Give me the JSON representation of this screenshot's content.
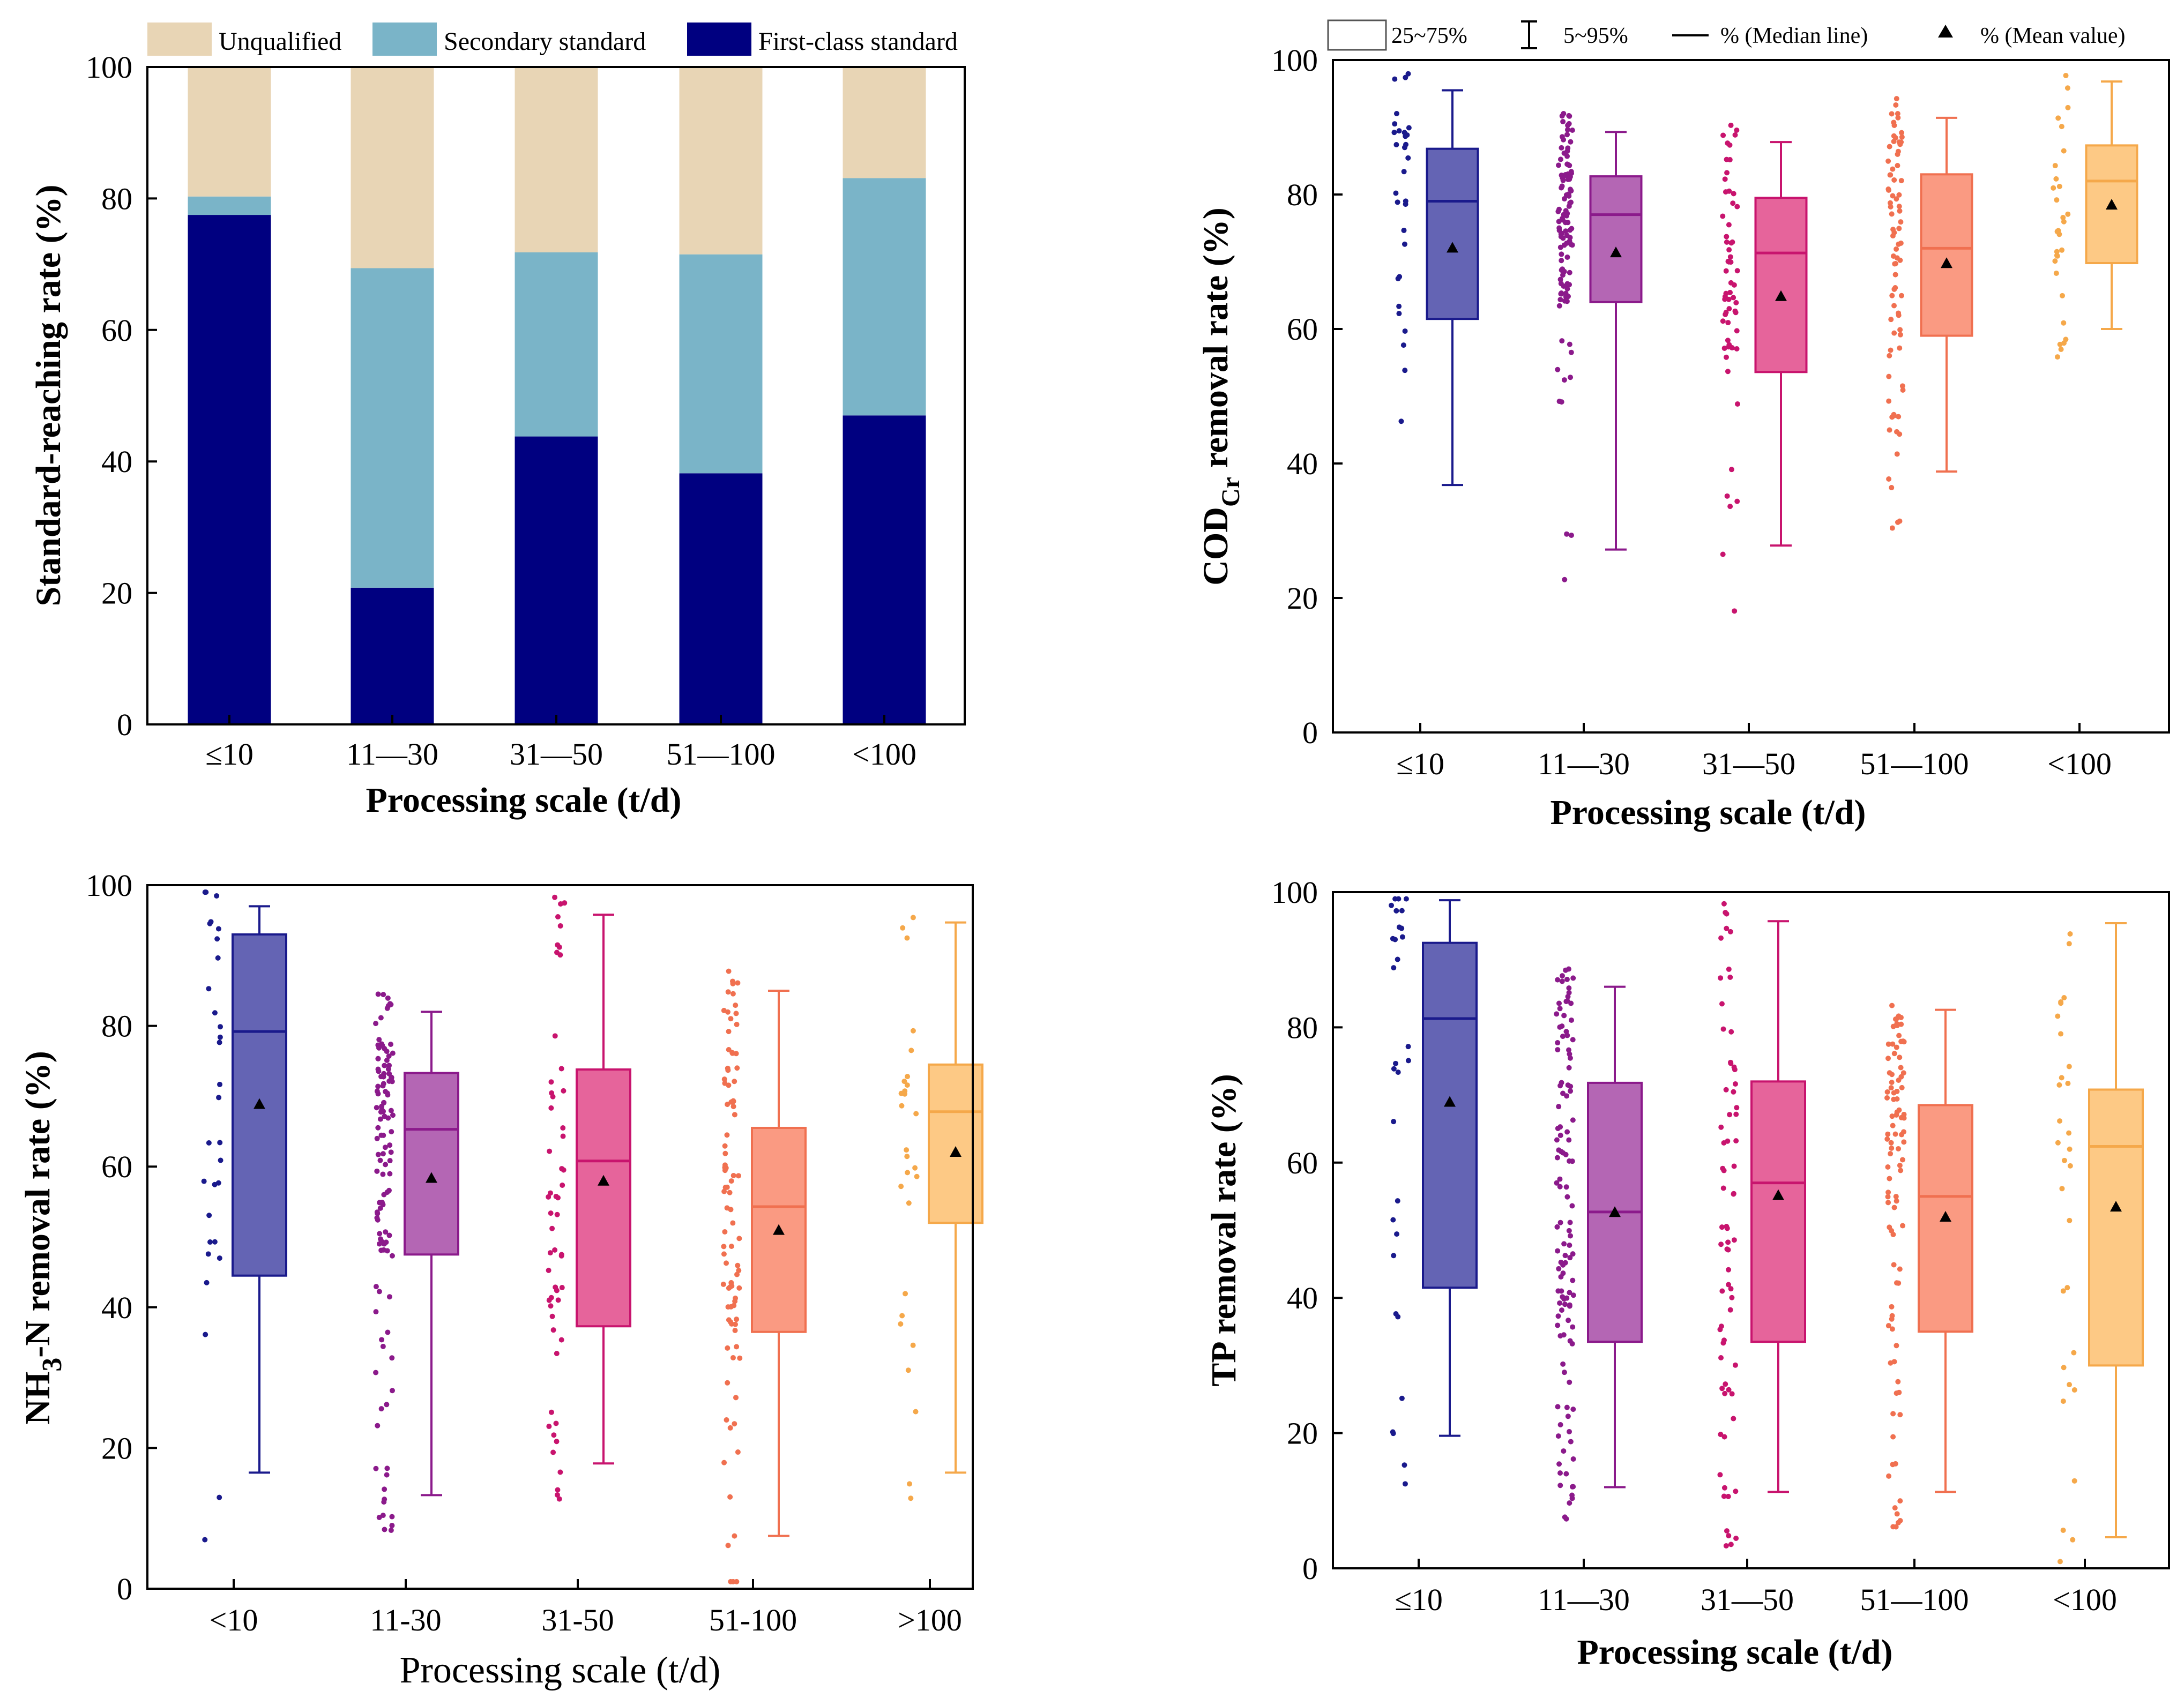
{
  "chart_data": [
    {
      "id": "panel-a",
      "type": "bar",
      "stacked": true,
      "title": "",
      "xlabel": "Processing scale (t/d)",
      "ylabel": "Standard-reaching rate (%)",
      "ylim": [
        0,
        100
      ],
      "yticks": [
        0,
        20,
        40,
        60,
        80,
        100
      ],
      "categories": [
        "≤10",
        "11—30",
        "31—50",
        "51—100",
        "<100"
      ],
      "series": [
        {
          "name": "First-class standard",
          "color": "#000080",
          "values": [
            77.5,
            20.8,
            43.8,
            38.2,
            47.0
          ]
        },
        {
          "name": "Secondary standard",
          "color": "#7ab4c8",
          "values": [
            2.8,
            48.6,
            28.0,
            33.3,
            36.1
          ]
        },
        {
          "name": "Unqualified",
          "color": "#e8d5b5",
          "values": [
            19.7,
            30.6,
            28.2,
            28.5,
            16.9
          ]
        }
      ],
      "legend_position": "top"
    },
    {
      "id": "panel-b",
      "type": "box",
      "xlabel": "Processing scale (t/d)",
      "ylabel_main": "COD",
      "ylabel_sub": "Cr",
      "ylabel_rest": " removal rate (%)",
      "ylim": [
        0,
        100
      ],
      "yticks": [
        0,
        20,
        40,
        60,
        80,
        100
      ],
      "categories": [
        "≤10",
        "11—30",
        "31—50",
        "51—100",
        "<100"
      ],
      "legend": {
        "box": "25~75%",
        "whisker": "5~95%",
        "median": "% (Median line)",
        "mean": "% (Mean value)"
      },
      "boxes": [
        {
          "color": "#1a1a8c",
          "fill": "#6464b4",
          "q1": 61.5,
          "median": 79.0,
          "q3": 86.8,
          "whisker_low": 36.8,
          "whisker_high": 95.5,
          "mean": 72.0
        },
        {
          "color": "#8b1a8b",
          "fill": "#b466b4",
          "q1": 64.0,
          "median": 77.0,
          "q3": 82.7,
          "whisker_low": 27.2,
          "whisker_high": 89.3,
          "mean": 71.3
        },
        {
          "color": "#c8146e",
          "fill": "#e6649b",
          "q1": 53.6,
          "median": 71.3,
          "q3": 79.5,
          "whisker_low": 27.8,
          "whisker_high": 87.8,
          "mean": 64.8
        },
        {
          "color": "#f07050",
          "fill": "#fa9a82",
          "q1": 59.0,
          "median": 72.0,
          "q3": 83.0,
          "whisker_low": 38.8,
          "whisker_high": 91.4,
          "mean": 69.7
        },
        {
          "color": "#f5a84a",
          "fill": "#fdc985",
          "q1": 69.8,
          "median": 82.0,
          "q3": 87.3,
          "whisker_low": 60.0,
          "whisker_high": 96.8,
          "mean": 78.4
        }
      ]
    },
    {
      "id": "panel-c",
      "type": "box",
      "xlabel": "Processing scale (t/d)",
      "ylabel_main": "NH",
      "ylabel_sub": "3",
      "ylabel_rest": "-N removal rate (%)",
      "ylim": [
        0,
        100
      ],
      "yticks": [
        0,
        20,
        40,
        60,
        80,
        100
      ],
      "categories": [
        "<10",
        "11-30",
        "31-50",
        "51-100",
        ">100"
      ],
      "boxes": [
        {
          "color": "#1a1a8c",
          "fill": "#6464b4",
          "q1": 44.5,
          "median": 79.2,
          "q3": 93.0,
          "whisker_low": 16.5,
          "whisker_high": 97.0,
          "mean": 68.8
        },
        {
          "color": "#8b1a8b",
          "fill": "#b466b4",
          "q1": 47.5,
          "median": 65.3,
          "q3": 73.3,
          "whisker_low": 13.3,
          "whisker_high": 82.0,
          "mean": 58.3
        },
        {
          "color": "#c8146e",
          "fill": "#e6649b",
          "q1": 37.3,
          "median": 60.8,
          "q3": 73.8,
          "whisker_low": 17.8,
          "whisker_high": 95.8,
          "mean": 57.9
        },
        {
          "color": "#f07050",
          "fill": "#fa9a82",
          "q1": 36.5,
          "median": 54.3,
          "q3": 65.5,
          "whisker_low": 7.5,
          "whisker_high": 85.0,
          "mean": 50.9
        },
        {
          "color": "#f5a84a",
          "fill": "#fdc985",
          "q1": 52.0,
          "median": 67.8,
          "q3": 74.5,
          "whisker_low": 16.5,
          "whisker_high": 94.7,
          "mean": 62.0
        }
      ]
    },
    {
      "id": "panel-d",
      "type": "box",
      "xlabel": "Processing scale (t/d)",
      "ylabel_main": "TP removal rate (%)",
      "ylabel_sub": "",
      "ylabel_rest": "",
      "ylim": [
        0,
        100
      ],
      "yticks": [
        0,
        20,
        40,
        60,
        80,
        100
      ],
      "categories": [
        "≤10",
        "11—30",
        "31—50",
        "51—100",
        "<100"
      ],
      "boxes": [
        {
          "color": "#1a1a8c",
          "fill": "#6464b4",
          "q1": 41.5,
          "median": 81.3,
          "q3": 92.5,
          "whisker_low": 19.6,
          "whisker_high": 98.8,
          "mean": 68.9
        },
        {
          "color": "#8b1a8b",
          "fill": "#b466b4",
          "q1": 33.5,
          "median": 52.7,
          "q3": 71.8,
          "whisker_low": 12.0,
          "whisker_high": 86.0,
          "mean": 52.6
        },
        {
          "color": "#c8146e",
          "fill": "#e6649b",
          "q1": 33.5,
          "median": 57.0,
          "q3": 72.0,
          "whisker_low": 11.3,
          "whisker_high": 95.7,
          "mean": 55.1
        },
        {
          "color": "#f07050",
          "fill": "#fa9a82",
          "q1": 35.0,
          "median": 55.0,
          "q3": 68.5,
          "whisker_low": 11.3,
          "whisker_high": 82.6,
          "mean": 51.9
        },
        {
          "color": "#f5a84a",
          "fill": "#fdc985",
          "q1": 30.0,
          "median": 62.4,
          "q3": 70.8,
          "whisker_low": 4.6,
          "whisker_high": 95.4,
          "mean": 53.4
        }
      ]
    }
  ]
}
